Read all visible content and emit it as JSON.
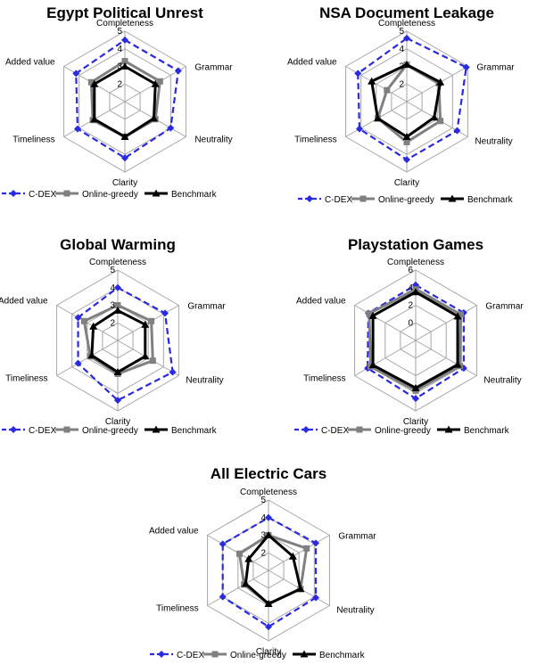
{
  "chart_data": [
    {
      "type": "radar",
      "title": "Egypt Political Unrest",
      "axes": [
        "Completeness",
        "Grammar",
        "Neutrality",
        "Clarity",
        "Timeliness",
        "Added value"
      ],
      "rlim": [
        1,
        5
      ],
      "ticks": [
        2,
        3,
        4,
        5
      ],
      "legend_position": "bottom",
      "series": [
        {
          "name": "C-DEX",
          "values": [
            4.5,
            4.5,
            4.0,
            4.2,
            4.1,
            4.2
          ],
          "color": "#2a2ae0",
          "style": "dashed",
          "marker": "diamond"
        },
        {
          "name": "Online-greedy",
          "values": [
            3.3,
            3.3,
            3.0,
            3.0,
            3.1,
            3.2
          ],
          "color": "#808080",
          "style": "solid",
          "marker": "square"
        },
        {
          "name": "Benchmark",
          "values": [
            3.0,
            3.0,
            2.9,
            3.0,
            3.0,
            3.0
          ],
          "color": "#000000",
          "style": "solid",
          "marker": "triangle"
        }
      ]
    },
    {
      "type": "radar",
      "title": "NSA Document Leakage",
      "axes": [
        "Completeness",
        "Grammar",
        "Neutrality",
        "Clarity",
        "Timeliness",
        "Added value"
      ],
      "rlim": [
        1,
        5
      ],
      "ticks": [
        2,
        3,
        4,
        5
      ],
      "legend_position": "bottom",
      "series": [
        {
          "name": "C-DEX",
          "values": [
            4.6,
            4.9,
            4.3,
            4.3,
            4.1,
            4.2
          ],
          "color": "#2a2ae0",
          "style": "dashed",
          "marker": "diamond"
        },
        {
          "name": "Online-greedy",
          "values": [
            3.1,
            3.1,
            3.2,
            3.3,
            2.9,
            2.3
          ],
          "color": "#808080",
          "style": "solid",
          "marker": "square"
        },
        {
          "name": "Benchmark",
          "values": [
            3.1,
            3.2,
            2.8,
            3.0,
            2.9,
            3.3
          ],
          "color": "#000000",
          "style": "solid",
          "marker": "triangle"
        }
      ]
    },
    {
      "type": "radar",
      "title": "Global Warming",
      "axes": [
        "Completeness",
        "Grammar",
        "Neutrality",
        "Clarity",
        "Timeliness",
        "Added value"
      ],
      "rlim": [
        1,
        5
      ],
      "ticks": [
        2,
        3,
        4,
        5
      ],
      "legend_position": "bottom",
      "series": [
        {
          "name": "C-DEX",
          "values": [
            4.0,
            4.1,
            4.6,
            4.4,
            3.6,
            3.6
          ],
          "color": "#2a2ae0",
          "style": "dashed",
          "marker": "diamond"
        },
        {
          "name": "Online-greedy",
          "values": [
            3.0,
            3.2,
            3.3,
            2.9,
            2.8,
            3.2
          ],
          "color": "#808080",
          "style": "solid",
          "marker": "square"
        },
        {
          "name": "Benchmark",
          "values": [
            2.7,
            2.8,
            2.8,
            2.8,
            2.7,
            2.6
          ],
          "color": "#000000",
          "style": "solid",
          "marker": "triangle"
        }
      ]
    },
    {
      "type": "radar",
      "title": "Playstation Games",
      "axes": [
        "Completeness",
        "Grammar",
        "Neutrality",
        "Clarity",
        "Timeliness",
        "Added value"
      ],
      "rlim": [
        -2,
        6
      ],
      "ticks": [
        0,
        2,
        4,
        6
      ],
      "legend_position": "bottom",
      "series": [
        {
          "name": "C-DEX",
          "values": [
            4.3,
            4.3,
            4.3,
            4.6,
            4.3,
            4.2
          ],
          "color": "#2a2ae0",
          "style": "dashed",
          "marker": "diamond"
        },
        {
          "name": "Online-greedy",
          "values": [
            3.8,
            3.9,
            3.8,
            3.7,
            3.9,
            4.1
          ],
          "color": "#808080",
          "style": "solid",
          "marker": "square"
        },
        {
          "name": "Benchmark",
          "values": [
            3.5,
            3.5,
            3.5,
            3.4,
            3.6,
            3.6
          ],
          "color": "#000000",
          "style": "solid",
          "marker": "triangle"
        }
      ]
    },
    {
      "type": "radar",
      "title": "All Electric Cars",
      "axes": [
        "Completeness",
        "Grammar",
        "Neutrality",
        "Clarity",
        "Timeliness",
        "Added value"
      ],
      "rlim": [
        1,
        5
      ],
      "ticks": [
        2,
        3,
        4,
        5
      ],
      "legend_position": "bottom",
      "series": [
        {
          "name": "C-DEX",
          "values": [
            4.0,
            4.1,
            4.1,
            4.2,
            4.0,
            4.0
          ],
          "color": "#2a2ae0",
          "style": "dashed",
          "marker": "diamond"
        },
        {
          "name": "Online-greedy",
          "values": [
            3.0,
            3.5,
            3.1,
            2.9,
            2.6,
            2.9
          ],
          "color": "#808080",
          "style": "solid",
          "marker": "square"
        },
        {
          "name": "Benchmark",
          "values": [
            3.0,
            2.6,
            3.1,
            2.9,
            2.5,
            2.3
          ],
          "color": "#000000",
          "style": "solid",
          "marker": "triangle"
        }
      ]
    }
  ]
}
